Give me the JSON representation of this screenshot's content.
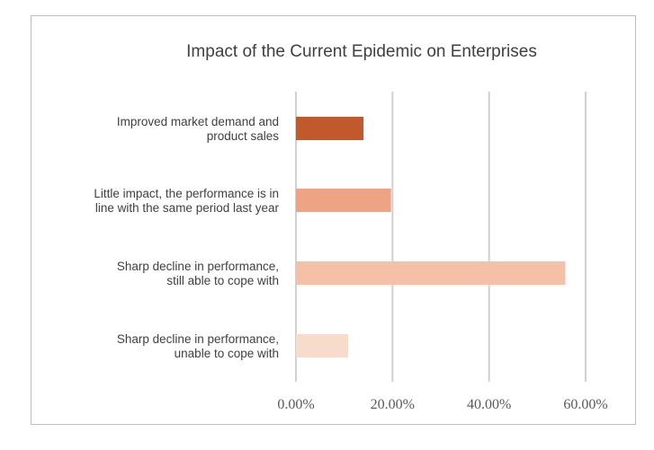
{
  "chart_data": {
    "type": "bar",
    "orientation": "horizontal",
    "title": "Impact of the Current Epidemic on Enterprises",
    "categories": [
      [
        "Improved market demand and",
        "product sales"
      ],
      [
        "Little impact, the performance is in",
        "line with the same period last year"
      ],
      [
        "Sharp decline in performance,",
        "still able to cope with"
      ],
      [
        "Sharp decline in performance,",
        "unable to cope with"
      ]
    ],
    "values": [
      14.0,
      19.7,
      55.8,
      10.8
    ],
    "colors": [
      "#c05a2c",
      "#eda384",
      "#f4c0a6",
      "#f7dccb"
    ],
    "xlim": [
      0,
      60
    ],
    "ticks": [
      0,
      20,
      40,
      60
    ],
    "tick_labels": [
      "0.00%",
      "20.00%",
      "40.00%",
      "60.00%"
    ],
    "grid": true,
    "legend": "none",
    "xlabel": "",
    "ylabel": ""
  }
}
